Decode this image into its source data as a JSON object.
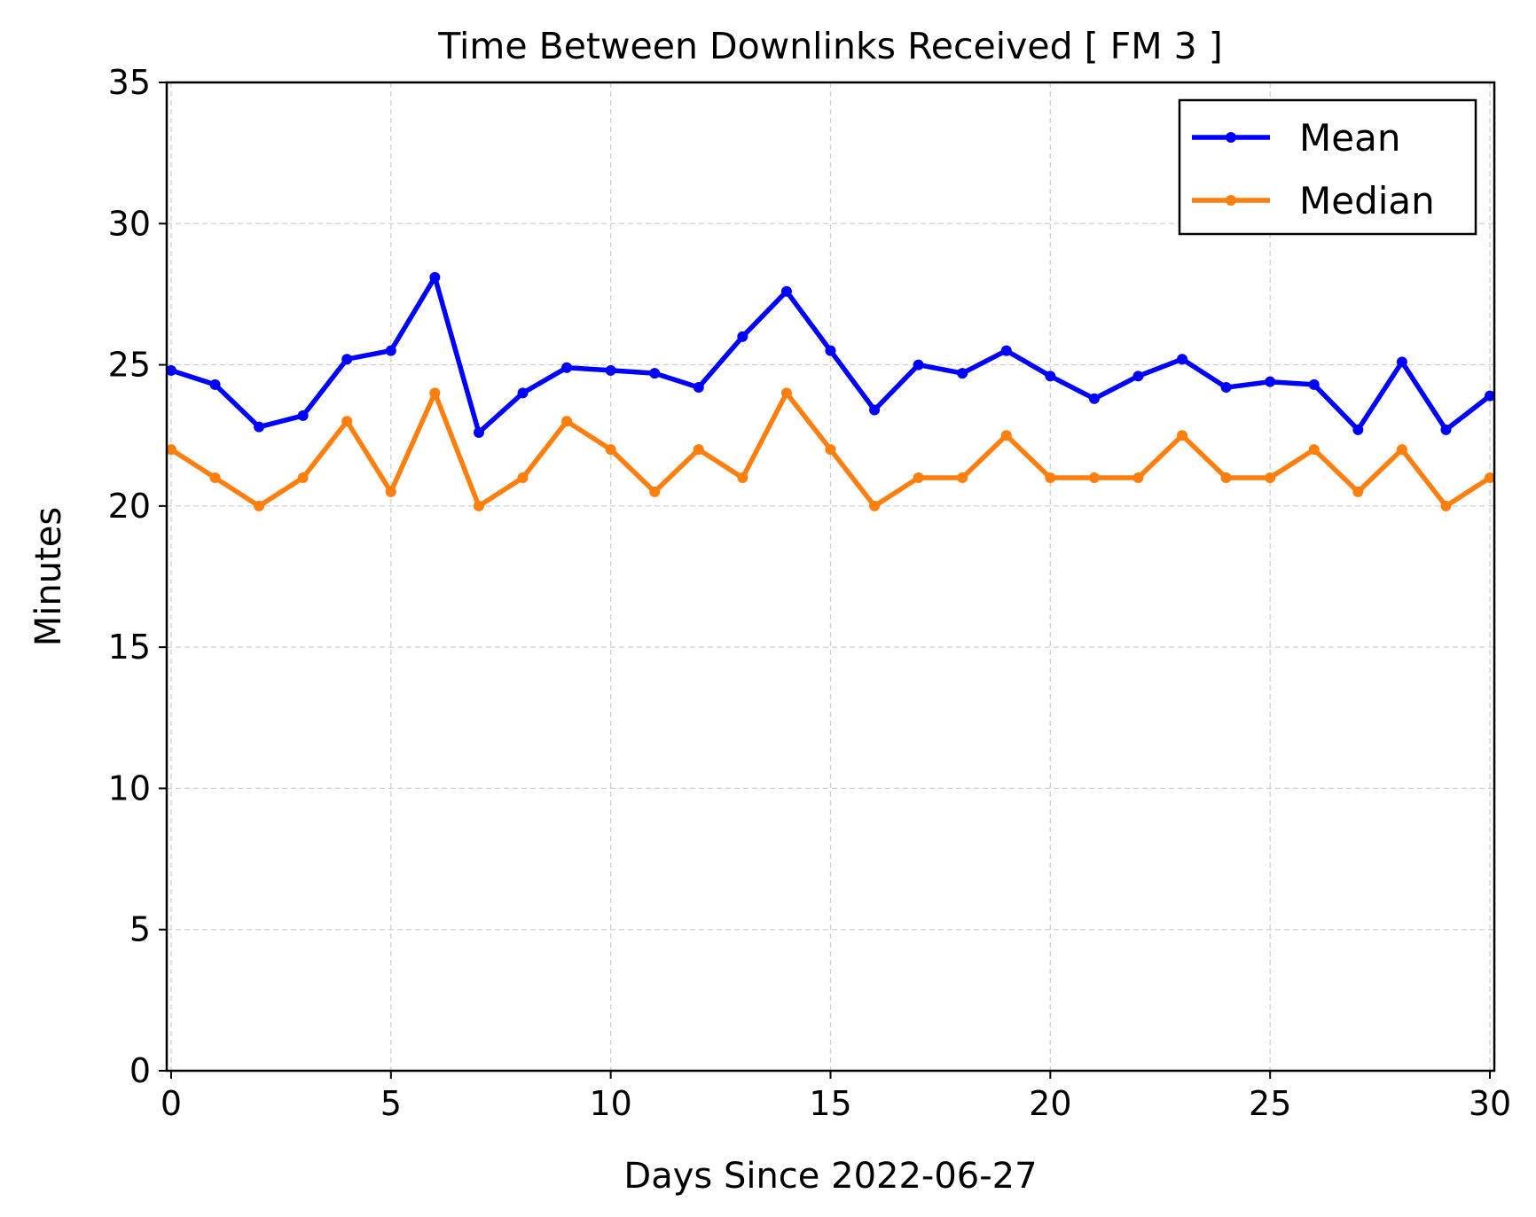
{
  "chart_data": {
    "type": "line",
    "title": "Time Between Downlinks Received [ FM 3 ]",
    "xlabel": "Days Since 2022-06-27",
    "ylabel": "Minutes",
    "xlim": [
      -0.1,
      30.1
    ],
    "ylim": [
      0,
      35
    ],
    "xticks": [
      0,
      5,
      10,
      15,
      20,
      25,
      30
    ],
    "yticks": [
      0,
      5,
      10,
      15,
      20,
      25,
      30,
      35
    ],
    "grid": true,
    "legend_position": "top-right",
    "x": [
      0,
      1,
      2,
      3,
      4,
      5,
      6,
      7,
      8,
      9,
      10,
      11,
      12,
      13,
      14,
      15,
      16,
      17,
      18,
      19,
      20,
      21,
      22,
      23,
      24,
      25,
      26,
      27,
      28,
      29,
      30
    ],
    "series": [
      {
        "name": "Mean",
        "color": "#0000ff",
        "marker": "dot",
        "values": [
          24.8,
          24.3,
          22.8,
          23.2,
          25.2,
          25.5,
          28.1,
          22.6,
          24.0,
          24.9,
          24.8,
          24.7,
          24.2,
          26.0,
          27.6,
          25.5,
          23.4,
          25.0,
          24.7,
          25.5,
          24.6,
          23.8,
          24.6,
          25.2,
          24.2,
          24.4,
          24.3,
          22.7,
          25.1,
          22.7,
          23.9
        ]
      },
      {
        "name": "Median",
        "color": "#ff7f0e",
        "marker": "dot",
        "values": [
          22.0,
          21.0,
          20.0,
          21.0,
          23.0,
          20.5,
          24.0,
          20.0,
          21.0,
          23.0,
          22.0,
          20.5,
          22.0,
          21.0,
          24.0,
          22.0,
          20.0,
          21.0,
          21.0,
          22.5,
          21.0,
          21.0,
          21.0,
          22.5,
          21.0,
          21.0,
          22.0,
          20.5,
          22.0,
          20.0,
          21.0
        ]
      }
    ]
  }
}
